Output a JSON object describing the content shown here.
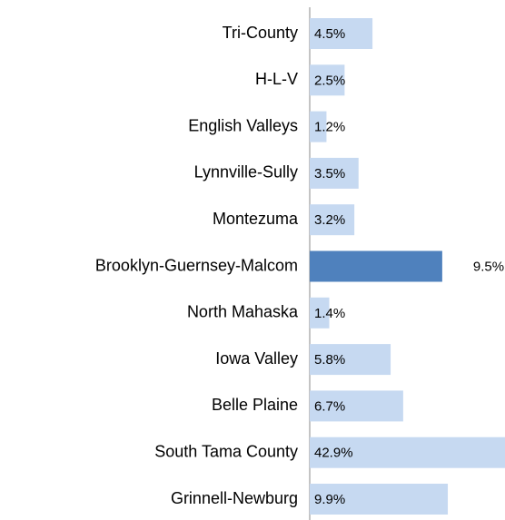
{
  "chart_data": {
    "type": "bar",
    "orientation": "horizontal",
    "categories": [
      "Tri-County",
      "H-L-V",
      "English Valleys",
      "Lynnville-Sully",
      "Montezuma",
      "Brooklyn-Guernsey-Malcom",
      "North Mahaska",
      "Iowa Valley",
      "Belle Plaine",
      "South Tama County",
      "Grinnell-Newburg"
    ],
    "values": [
      4.5,
      2.5,
      1.2,
      3.5,
      3.2,
      9.5,
      1.4,
      5.8,
      6.7,
      42.9,
      9.9
    ],
    "value_labels": [
      "4.5%",
      "2.5%",
      "1.2%",
      "3.5%",
      "3.2%",
      "9.5%",
      "1.4%",
      "5.8%",
      "6.7%",
      "42.9%",
      "9.9%"
    ],
    "colors": [
      "#c6d9f1",
      "#c6d9f1",
      "#c6d9f1",
      "#c6d9f1",
      "#c6d9f1",
      "#4f81bd",
      "#c6d9f1",
      "#c6d9f1",
      "#c6d9f1",
      "#c6d9f1",
      "#c6d9f1"
    ],
    "xlim": [
      0,
      14
    ]
  }
}
